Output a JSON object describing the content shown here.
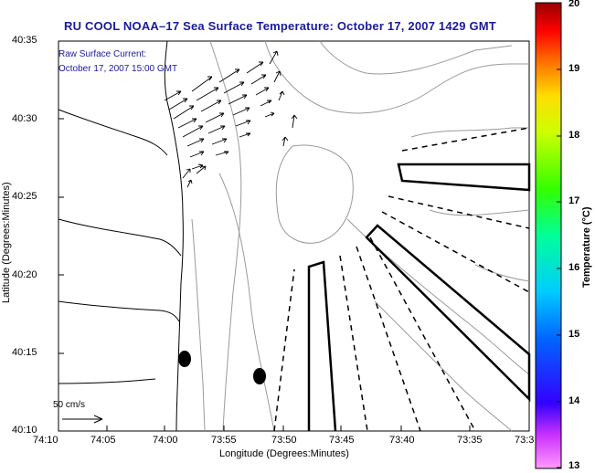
{
  "title": "RU COOL  NOAA–17  Sea Surface Temperature:  October 17, 2007 1429 GMT",
  "legend": {
    "line1": "Raw Surface Current:",
    "line2": "October 17, 2007 15:00 GMT"
  },
  "scale_label": "50 cm/s",
  "xlabel": "Longitude (Degrees:Minutes)",
  "ylabel": "Latitude (Degrees:Minutes)",
  "x_ticks": [
    "74:10",
    "74:05",
    "74:00",
    "73:55",
    "73:50",
    "73:45",
    "73:40",
    "73:35",
    "73:3"
  ],
  "y_ticks": [
    "40:35",
    "40:30",
    "40:25",
    "40:20",
    "40:15",
    "40:10"
  ],
  "colorbar": {
    "label": "Temperature (°C)",
    "ticks": [
      "20",
      "19",
      "18",
      "17",
      "16",
      "15",
      "14",
      "13"
    ]
  },
  "colors": {
    "title": "#1a1a9c",
    "land_contour": "#000000",
    "bathymetry": "#999999",
    "arrows": "#000000"
  }
}
